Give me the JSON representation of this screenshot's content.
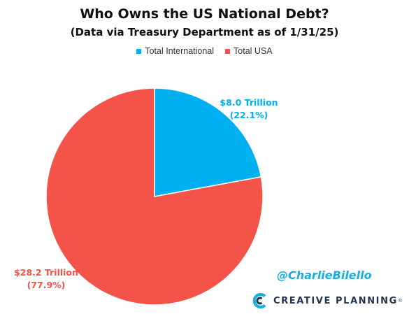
{
  "chart_data": {
    "type": "pie",
    "title": "Who Owns the US National Debt?",
    "subtitle": "(Data via Treasury Department as of 1/31/25)",
    "legend_position": "top",
    "start_angle_deg": 0,
    "direction": "clockwise",
    "slices": [
      {
        "name": "Total International",
        "value": 8.0,
        "percent": 22.1,
        "label_value": "$8.0 Trillion",
        "label_percent": "(22.1%)",
        "color": "#00B0F0"
      },
      {
        "name": "Total USA",
        "value": 28.2,
        "percent": 77.9,
        "label_value": "$28.2 Trillion",
        "label_percent": "(77.9%)",
        "color": "#F4534A"
      }
    ]
  },
  "watermark": {
    "handle": "@CharlieBilello",
    "brand": "CREATIVE PLANNING",
    "brand_mark": "®",
    "handle_color": "#1AAEDB",
    "brand_color": "#1f3550"
  }
}
